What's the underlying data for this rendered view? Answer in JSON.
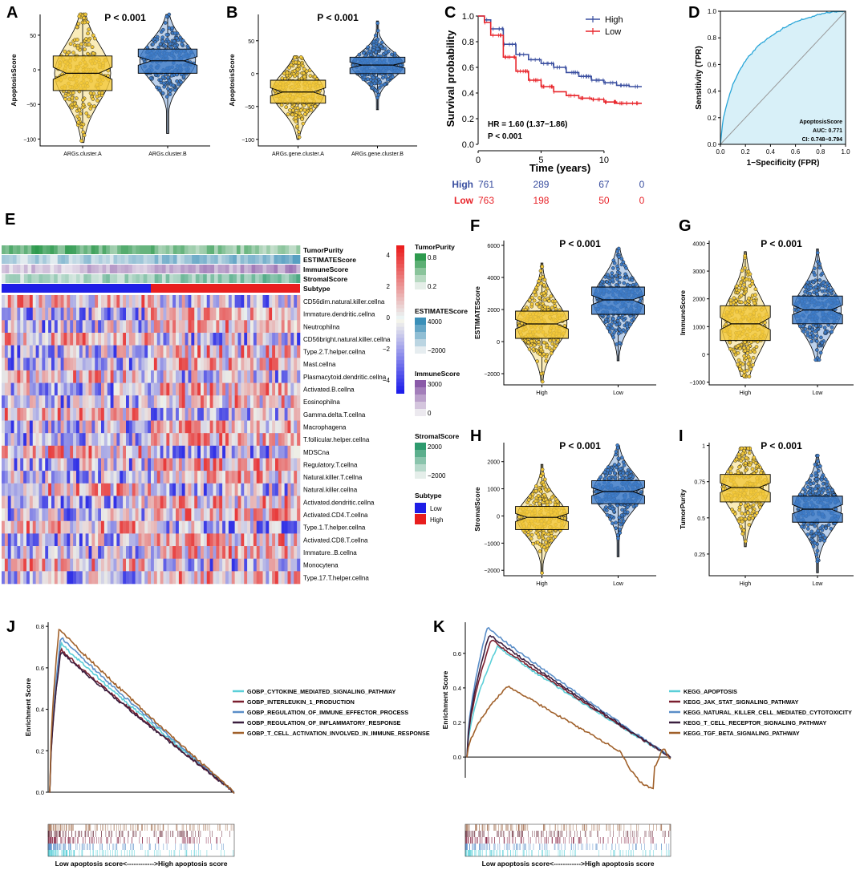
{
  "figure": {
    "panel_letters": [
      "A",
      "B",
      "C",
      "D",
      "E",
      "F",
      "G",
      "H",
      "I",
      "J",
      "K"
    ],
    "colors": {
      "yellow": "#F2C83A",
      "blue": "#3E7CC8",
      "high_km": "#3A4FA0",
      "low_km": "#E8242A",
      "roc_fill": "#D8F0F8",
      "roc_line": "#2AA6D8",
      "heat_low": "#1E1EE6",
      "heat_high": "#E81E1E"
    }
  },
  "chart_data": [
    {
      "id": "A",
      "type": "violin-box",
      "title": "P < 0.001",
      "ylabel": "ApoptosisScore",
      "categories": [
        "ARGs.cluster.A",
        "ARGs.cluster.B"
      ],
      "yticks": [
        50,
        0,
        -50,
        -100
      ],
      "ylim": [
        -110,
        80
      ],
      "groups": [
        {
          "name": "ARGs.cluster.A",
          "color": "#F2C83A",
          "q1": -30,
          "median": -5,
          "q3": 20,
          "min": -105,
          "max": 80
        },
        {
          "name": "ARGs.cluster.B",
          "color": "#3E7CC8",
          "q1": -5,
          "median": 13,
          "q3": 30,
          "min": -92,
          "max": 80
        }
      ]
    },
    {
      "id": "B",
      "type": "violin-box",
      "title": "P < 0.001",
      "ylabel": "ApoptosisScore",
      "categories": [
        "ARGs.gene.cluster.A",
        "ARGs.gene.cluster.B"
      ],
      "yticks": [
        50,
        0,
        -50,
        -100
      ],
      "ylim": [
        -110,
        90
      ],
      "groups": [
        {
          "name": "ARGs.gene.cluster.A",
          "color": "#F2C83A",
          "q1": -45,
          "median": -28,
          "q3": -10,
          "min": -100,
          "max": 25
        },
        {
          "name": "ARGs.gene.cluster.B",
          "color": "#3E7CC8",
          "q1": 0,
          "median": 13,
          "q3": 25,
          "min": -55,
          "max": 80
        }
      ]
    },
    {
      "id": "C",
      "type": "line",
      "subtype": "kaplan-meier",
      "xlabel": "Time (years)",
      "ylabel": "Survival probability",
      "xticks": [
        0,
        5,
        10
      ],
      "yticks": [
        0.0,
        0.2,
        0.4,
        0.6,
        0.8,
        1.0
      ],
      "xlim": [
        0,
        13
      ],
      "ylim": [
        0,
        1
      ],
      "legend": [
        "High",
        "Low"
      ],
      "annotation": [
        "HR = 1.60 (1.37−1.86)",
        "P < 0.001"
      ],
      "series": [
        {
          "name": "High",
          "color": "#3A4FA0",
          "x": [
            0,
            0.5,
            1,
            2,
            3,
            4,
            5,
            6,
            7,
            8,
            9,
            10,
            11,
            12,
            13
          ],
          "y": [
            1,
            0.97,
            0.9,
            0.78,
            0.7,
            0.66,
            0.63,
            0.6,
            0.56,
            0.53,
            0.5,
            0.48,
            0.46,
            0.45,
            0.45
          ]
        },
        {
          "name": "Low",
          "color": "#E8242A",
          "x": [
            0,
            0.5,
            1,
            2,
            3,
            4,
            5,
            6,
            7,
            8,
            9,
            10,
            11,
            12,
            13
          ],
          "y": [
            1,
            0.95,
            0.85,
            0.68,
            0.57,
            0.5,
            0.45,
            0.41,
            0.38,
            0.36,
            0.35,
            0.33,
            0.32,
            0.32,
            0.32
          ]
        }
      ],
      "risk_table": {
        "times": [
          0,
          5,
          10,
          13
        ],
        "rows": [
          {
            "name": "High",
            "color": "#3A4FA0",
            "values": [
              "761",
              "289",
              "67",
              "0"
            ]
          },
          {
            "name": "Low",
            "color": "#E8242A",
            "values": [
              "763",
              "198",
              "50",
              "0"
            ]
          }
        ]
      }
    },
    {
      "id": "D",
      "type": "line",
      "subtype": "roc",
      "xlabel": "1−Specificity (FPR)",
      "ylabel": "Sensitivity (TPR)",
      "xticks": [
        0.0,
        0.2,
        0.4,
        0.6,
        0.8,
        1.0
      ],
      "yticks": [
        0.0,
        0.2,
        0.4,
        0.6,
        0.8,
        1.0
      ],
      "legend_text": [
        "ApoptosisScore",
        "AUC: 0.771",
        "CI: 0.748−0.794"
      ],
      "series": [
        {
          "name": "ApoptosisScore",
          "x": [
            0,
            0.02,
            0.05,
            0.1,
            0.15,
            0.2,
            0.3,
            0.4,
            0.5,
            0.6,
            0.7,
            0.8,
            0.9,
            1
          ],
          "y": [
            0,
            0.18,
            0.3,
            0.45,
            0.55,
            0.63,
            0.74,
            0.81,
            0.87,
            0.92,
            0.95,
            0.98,
            0.995,
            1
          ]
        }
      ]
    },
    {
      "id": "E",
      "type": "heatmap",
      "annotation_rows": [
        "TumorPurity",
        "ESTIMATEScore",
        "ImmuneScore",
        "StromalScore",
        "Subtype"
      ],
      "rows": [
        "CD56dim.natural.killer.cellna",
        "Immature.dendritic.cellna",
        "Neutrophilna",
        "CD56bright.natural.killer.cellna",
        "Type.2.T.helper.cellna",
        "Mast.cellna",
        "Plasmacytoid.dendritic.cellna",
        "Activated.B.cellna",
        "Eosinophilna",
        "Gamma.delta.T.cellna",
        "Macrophagena",
        "T.follicular.helper.cellna",
        "MDSCna",
        "Regulatory.T.cellna",
        "Natural.killer.T.cellna",
        "Natural.killer.cellna",
        "Activated.dendritic.cellna",
        "Activated.CD4.T.cellna",
        "Type.1.T.helper.cellna",
        "Activated.CD8.T.cellna",
        "Immature..B.cellna",
        "Monocytena",
        "Type.17.T.helper.cellna"
      ],
      "colorbar_ticks": [
        "4",
        "2",
        "0",
        "−2",
        "−4"
      ],
      "legends": [
        {
          "title": "TumorPurity",
          "labels": [
            "0.8",
            "0.2"
          ],
          "colors": [
            "#2E9A4E",
            "#F2FAF2"
          ]
        },
        {
          "title": "ESTIMATEScore",
          "labels": [
            "4000",
            "−2000"
          ],
          "colors": [
            "#3A8FB8",
            "#F2FAF6"
          ]
        },
        {
          "title": "ImmuneScore",
          "labels": [
            "3000",
            "0"
          ],
          "colors": [
            "#8A5AA8",
            "#F2F6FA"
          ]
        },
        {
          "title": "StromalScore",
          "labels": [
            "2000",
            "−2000"
          ],
          "colors": [
            "#2E9A6E",
            "#F2FAF8"
          ]
        },
        {
          "title": "Subtype",
          "labels": [
            "Low",
            "High"
          ],
          "colors": [
            "#1E1EE6",
            "#E81E1E"
          ]
        }
      ]
    },
    {
      "id": "F",
      "type": "violin-box",
      "title": "P < 0.001",
      "ylabel": "ESTIMATEScore",
      "categories": [
        "High",
        "Low"
      ],
      "yticks": [
        6000,
        4000,
        2000,
        0,
        -2000
      ],
      "ylim": [
        -2700,
        6300
      ],
      "groups": [
        {
          "name": "High",
          "color": "#F2C83A",
          "q1": 200,
          "median": 1100,
          "q3": 1900,
          "min": -2500,
          "max": 4900
        },
        {
          "name": "Low",
          "color": "#3E7CC8",
          "q1": 1700,
          "median": 2600,
          "q3": 3400,
          "min": -1200,
          "max": 5800
        }
      ]
    },
    {
      "id": "G",
      "type": "violin-box",
      "title": "P < 0.001",
      "ylabel": "ImmuneScore",
      "categories": [
        "High",
        "Low"
      ],
      "yticks": [
        4000,
        3000,
        2000,
        1000,
        0,
        -1000
      ],
      "ylim": [
        -1100,
        4100
      ],
      "groups": [
        {
          "name": "High",
          "color": "#F2C83A",
          "q1": 500,
          "median": 1100,
          "q3": 1750,
          "min": -800,
          "max": 3700
        },
        {
          "name": "Low",
          "color": "#3E7CC8",
          "q1": 1100,
          "median": 1600,
          "q3": 2100,
          "min": -200,
          "max": 3800
        }
      ]
    },
    {
      "id": "H",
      "type": "violin-box",
      "title": "P < 0.001",
      "ylabel": "StromalScore",
      "categories": [
        "High",
        "Low"
      ],
      "yticks": [
        2000,
        1000,
        0,
        -1000,
        -2000
      ],
      "ylim": [
        -2200,
        2700
      ],
      "groups": [
        {
          "name": "High",
          "color": "#F2C83A",
          "q1": -500,
          "median": -50,
          "q3": 350,
          "min": -2100,
          "max": 1900
        },
        {
          "name": "Low",
          "color": "#3E7CC8",
          "q1": 450,
          "median": 900,
          "q3": 1300,
          "min": -1500,
          "max": 2600
        }
      ]
    },
    {
      "id": "I",
      "type": "violin-box",
      "title": "P < 0.001",
      "ylabel": "TumorPurity",
      "categories": [
        "High",
        "Low"
      ],
      "yticks": [
        1.0,
        0.75,
        0.5,
        0.25
      ],
      "ylim": [
        0.1,
        1.02
      ],
      "groups": [
        {
          "name": "High",
          "color": "#F2C83A",
          "q1": 0.61,
          "median": 0.71,
          "q3": 0.8,
          "min": 0.3,
          "max": 0.98
        },
        {
          "name": "Low",
          "color": "#3E7CC8",
          "q1": 0.47,
          "median": 0.56,
          "q3": 0.65,
          "min": 0.12,
          "max": 0.93
        }
      ]
    },
    {
      "id": "J",
      "type": "line",
      "subtype": "gsea",
      "ylabel": "Enrichment Score",
      "yticks": [
        0.0,
        0.2,
        0.4,
        0.6,
        0.8
      ],
      "ylim": [
        0,
        0.82
      ],
      "xlabel": "Low apoptosis score<------------>High apoptosis score",
      "series": [
        {
          "name": "GOBP_CYTOKINE_MEDIATED_SIGNALING_PATHWAY",
          "color": "#5BCFD8",
          "peak": 0.72,
          "peak_x": 0.06
        },
        {
          "name": "GOBP_INTERLEUKIN_1_PRODUCTION",
          "color": "#7A1E2E",
          "peak": 0.69,
          "peak_x": 0.06
        },
        {
          "name": "GOBP_REGULATION_OF_IMMUNE_EFFECTOR_PROCESS",
          "color": "#5A8EC8",
          "peak": 0.75,
          "peak_x": 0.06
        },
        {
          "name": "GOBP_REGULATION_OF_INFLAMMATORY_RESPONSE",
          "color": "#3A1E3E",
          "peak": 0.68,
          "peak_x": 0.06
        },
        {
          "name": "GOBP_T_CELL_ACTIVATION_INVOLVED_IN_IMMUNE_RESPONSE",
          "color": "#A0602A",
          "peak": 0.79,
          "peak_x": 0.05
        }
      ]
    },
    {
      "id": "K",
      "type": "line",
      "subtype": "gsea",
      "ylabel": "Enrichment Score",
      "yticks": [
        0.0,
        0.2,
        0.4,
        0.6
      ],
      "ylim": [
        -0.12,
        0.78
      ],
      "xlabel": "Low apoptosis score<------------>High apoptosis score",
      "series": [
        {
          "name": "KEGG_APOPTOSIS",
          "color": "#5BCFD8",
          "peak": 0.64,
          "peak_x": 0.15
        },
        {
          "name": "KEGG_JAK_STAT_SIGNALING_PATHWAY",
          "color": "#7A1E2E",
          "peak": 0.68,
          "peak_x": 0.12
        },
        {
          "name": "KEGG_NATURAL_KILLER_CELL_MEDIATED_CYTOTOXICITY",
          "color": "#5A8EC8",
          "peak": 0.75,
          "peak_x": 0.1
        },
        {
          "name": "KEGG_T_CELL_RECEPTOR_SIGNALING_PATHWAY",
          "color": "#3A1E3E",
          "peak": 0.71,
          "peak_x": 0.11
        },
        {
          "name": "KEGG_TGF_BETA_SIGNALING_PATHWAY",
          "color": "#A0602A",
          "peak": 0.41,
          "peak_x": 0.2
        }
      ]
    }
  ]
}
